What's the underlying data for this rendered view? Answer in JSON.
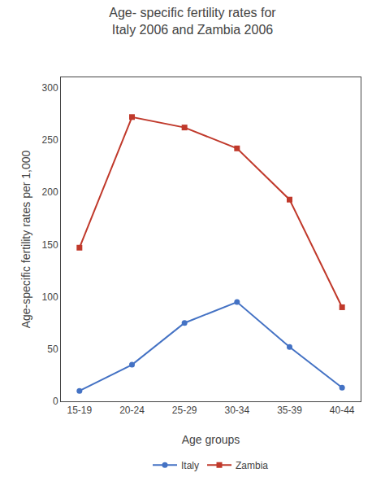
{
  "chart_data": {
    "type": "line",
    "title": "Age- specific fertility rates for\nItaly 2006 and Zambia 2006",
    "x_label": "Age groups",
    "y_label": "Age-specific fertility rates per 1,000",
    "categories": [
      "15-19",
      "20-24",
      "25-29",
      "30-34",
      "35-39",
      "40-44"
    ],
    "series": [
      {
        "name": "Italy",
        "color": "#4472c4",
        "marker": "circle",
        "values": [
          10,
          35,
          75,
          95,
          52,
          13
        ]
      },
      {
        "name": "Zambia",
        "color": "#c0392b",
        "marker": "square",
        "values": [
          147,
          272,
          262,
          242,
          193,
          90
        ]
      }
    ],
    "ylim": [
      0,
      310
    ],
    "yticks": [
      0,
      50,
      100,
      150,
      200,
      250,
      300
    ],
    "grid": false,
    "legend": "bottom"
  }
}
